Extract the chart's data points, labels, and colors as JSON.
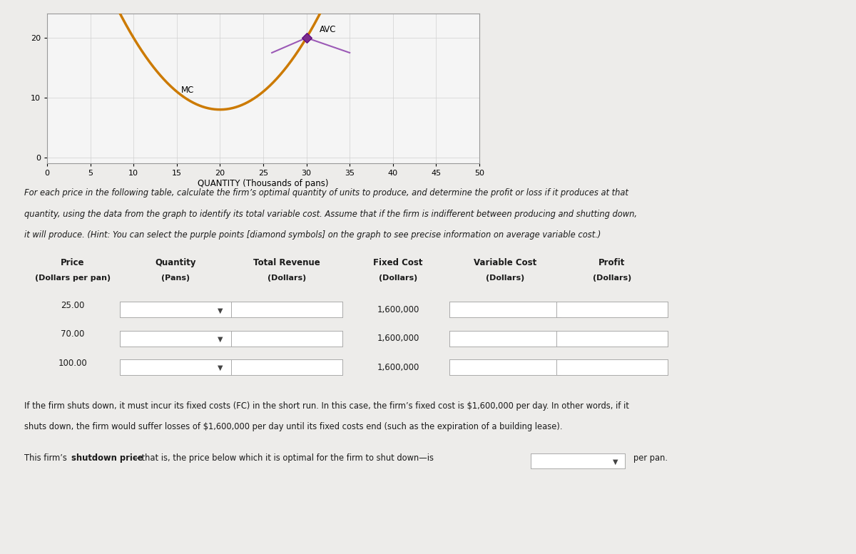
{
  "graph": {
    "xlim": [
      0,
      50
    ],
    "ylim": [
      -1,
      24
    ],
    "xticks": [
      0,
      5,
      10,
      15,
      20,
      25,
      30,
      35,
      40,
      45,
      50
    ],
    "yticks": [
      0,
      10,
      20
    ],
    "xlabel": "QUANTITY (Thousands of pans)",
    "curve_color": "#CC7A00",
    "avc_label": "AVC",
    "mc_label": "MC",
    "diamond_color": "#7B2D8B",
    "diamond_x": 30,
    "diamond_y": 20,
    "wing_color": "#9B59B6"
  },
  "p1_lines": [
    "For each price in the following table, calculate the firm’s optimal quantity of units to produce, and determine the profit or loss if it produces at that",
    "quantity, using the data from the graph to identify its total variable cost. Assume that if the firm is indifferent between producing and shutting down,",
    "it will produce. (Hint: You can select the purple points [diamond symbols] on the graph to see precise information on average variable cost.)"
  ],
  "table": {
    "col_headers": [
      "Price",
      "Quantity",
      "Total Revenue",
      "Fixed Cost",
      "Variable Cost",
      "Profit"
    ],
    "col_subheaders": [
      "(Dollars per pan)",
      "(Pans)",
      "(Dollars)",
      "(Dollars)",
      "(Dollars)",
      "(Dollars)"
    ],
    "prices": [
      "25.00",
      "70.00",
      "100.00"
    ],
    "fixed_costs": [
      "1,600,000",
      "1,600,000",
      "1,600,000"
    ]
  },
  "p2_lines": [
    "If the firm shuts down, it must incur its fixed costs (FC) in the short run. In this case, the firm’s fixed cost is $1,600,000 per day. In other words, if it",
    "shuts down, the firm would suffer losses of $1,600,000 per day until its fixed costs end (such as the expiration of a building lease)."
  ],
  "p3_pre": "This firm’s ",
  "p3_bold": "shutdown price",
  "p3_mid": "—that is, the price below which it is optimal for the firm to shut down—is",
  "p3_end": "per pan.",
  "bg_color": "#edecea",
  "graph_bg": "#f5f5f5",
  "gold_line_color": "#C8A800",
  "text_color": "#1a1a1a"
}
